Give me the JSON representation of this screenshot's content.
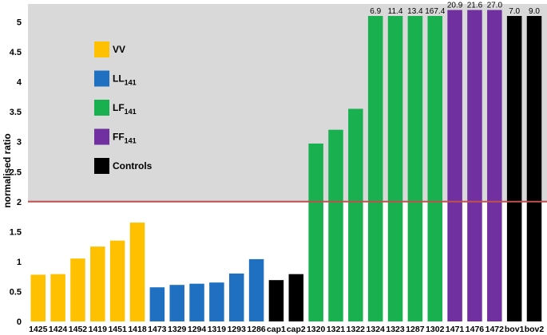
{
  "chart_data": {
    "type": "bar",
    "ylabel": "normalised ratio",
    "xlabel": "",
    "ylim": [
      0,
      5.3
    ],
    "yticks": [
      "0",
      "0.5",
      "1",
      "1.5",
      "2",
      "2.5",
      "3",
      "3.5",
      "4",
      "4.5",
      "5"
    ],
    "grid": false,
    "threshold": 2,
    "categories": [
      "1425",
      "1424",
      "1452",
      "1419",
      "1451",
      "1418",
      "1473",
      "1329",
      "1294",
      "1319",
      "1293",
      "1286",
      "cap1",
      "cap2",
      "1320",
      "1321",
      "1322",
      "1324",
      "1323",
      "1287",
      "1302",
      "1471",
      "1476",
      "1472",
      "bov1",
      "bov2"
    ],
    "values": [
      0.78,
      0.79,
      1.05,
      1.25,
      1.35,
      1.65,
      0.57,
      0.61,
      0.63,
      0.65,
      0.8,
      1.04,
      0.69,
      0.79,
      2.97,
      3.2,
      3.55,
      5.1,
      5.1,
      5.1,
      5.1,
      5.2,
      5.2,
      5.2,
      5.1,
      5.1
    ],
    "groups": [
      "VV",
      "VV",
      "VV",
      "VV",
      "VV",
      "VV",
      "LL",
      "LL",
      "LL",
      "LL",
      "LL",
      "LL",
      "Controls",
      "Controls",
      "LF",
      "LF",
      "LF",
      "LF",
      "LF",
      "LF",
      "LF",
      "FF",
      "FF",
      "FF",
      "Controls",
      "Controls"
    ],
    "top_labels": [
      "",
      "",
      "",
      "",
      "",
      "",
      "",
      "",
      "",
      "",
      "",
      "",
      "",
      "",
      "",
      "",
      "",
      "6.9",
      "11.4",
      "13.4",
      "167.4",
      "20.9",
      "21.6",
      "27.0",
      "7.0",
      "9.0"
    ],
    "colors": {
      "VV": "#ffc000",
      "LL": "#1f70c1",
      "LF": "#19b050",
      "FF": "#7030a0",
      "Controls": "#000000",
      "threshold": "#c0504d",
      "plot_bg": "#d9d9d9"
    },
    "legend": {
      "placement": "upper-left",
      "entries": [
        {
          "group": "VV",
          "label": "VV",
          "sub": ""
        },
        {
          "group": "LL",
          "label": "LL",
          "sub": "141"
        },
        {
          "group": "LF",
          "label": "LF",
          "sub": "141"
        },
        {
          "group": "FF",
          "label": "FF",
          "sub": "141"
        },
        {
          "group": "Controls",
          "label": "Controls",
          "sub": ""
        }
      ]
    }
  }
}
